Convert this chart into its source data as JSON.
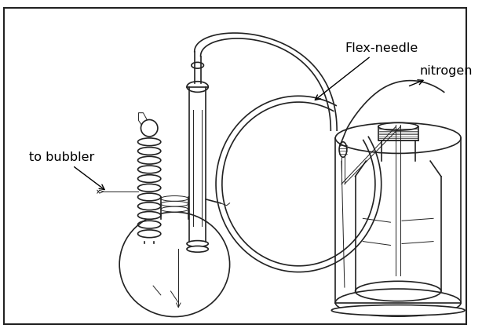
{
  "bg_color": "#ffffff",
  "border_color": "#000000",
  "line_color": "#222222",
  "labels": {
    "flex_needle": "Flex-needle",
    "nitrogen": "nitrogen",
    "to_bubbler": "to bubbler"
  },
  "fig_width": 6.14,
  "fig_height": 4.23,
  "dpi": 100
}
